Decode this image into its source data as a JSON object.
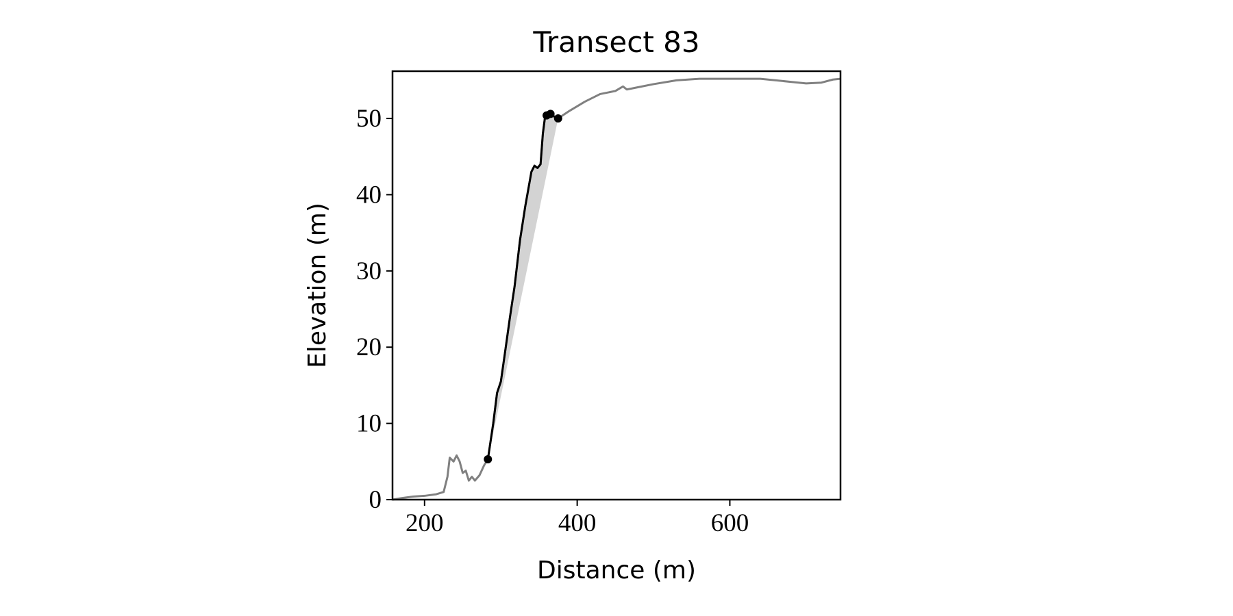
{
  "chart_data": {
    "type": "line",
    "title": "Transect 83",
    "xlabel": "Distance (m)",
    "ylabel": "Elevation (m)",
    "xlim": [
      158,
      745
    ],
    "ylim": [
      0,
      56.2
    ],
    "xticks": [
      200,
      400,
      600
    ],
    "yticks": [
      0,
      10,
      20,
      30,
      40,
      50
    ],
    "fill_color": "#d3d3d3",
    "series": [
      {
        "color": "#808080",
        "x": [
          158,
          170,
          185,
          200,
          215,
          225,
          230,
          233,
          238,
          242,
          246,
          250,
          254,
          258,
          262,
          266,
          272,
          278,
          283,
          290,
          295,
          300,
          305,
          312,
          318,
          325,
          332,
          340,
          344,
          348,
          352,
          355,
          358,
          363,
          367,
          375,
          390,
          410,
          430,
          450,
          460,
          465,
          480,
          500,
          530,
          560,
          600,
          640,
          680,
          700,
          720,
          735,
          745
        ],
        "values": [
          0,
          0.2,
          0.4,
          0.5,
          0.7,
          1,
          3,
          5.5,
          5,
          5.8,
          5,
          3.5,
          3.8,
          2.5,
          3,
          2.5,
          3.2,
          4.5,
          5.3,
          10,
          14,
          15.5,
          19,
          24,
          28,
          34,
          38.5,
          43,
          43.8,
          43.5,
          44,
          48,
          50.3,
          50.6,
          50.4,
          50,
          51,
          52.2,
          53.2,
          53.6,
          54.2,
          53.8,
          54.1,
          54.5,
          55,
          55.2,
          55.2,
          55.2,
          54.8,
          54.6,
          54.7,
          55.1,
          55.2
        ]
      },
      {
        "color": "#000000",
        "x": [
          283,
          290,
          295,
          300,
          305,
          312,
          318,
          325,
          332,
          340,
          344,
          348,
          352,
          355,
          358,
          363,
          367,
          375
        ],
        "values": [
          5.3,
          10,
          14,
          15.5,
          19,
          24,
          28,
          34,
          38.5,
          43,
          43.8,
          43.5,
          44,
          48,
          50.3,
          50.6,
          50.4,
          50
        ]
      }
    ],
    "points": {
      "color": "#000000",
      "x": [
        283,
        360,
        365,
        375
      ],
      "values": [
        5.3,
        50.4,
        50.6,
        50
      ]
    }
  }
}
